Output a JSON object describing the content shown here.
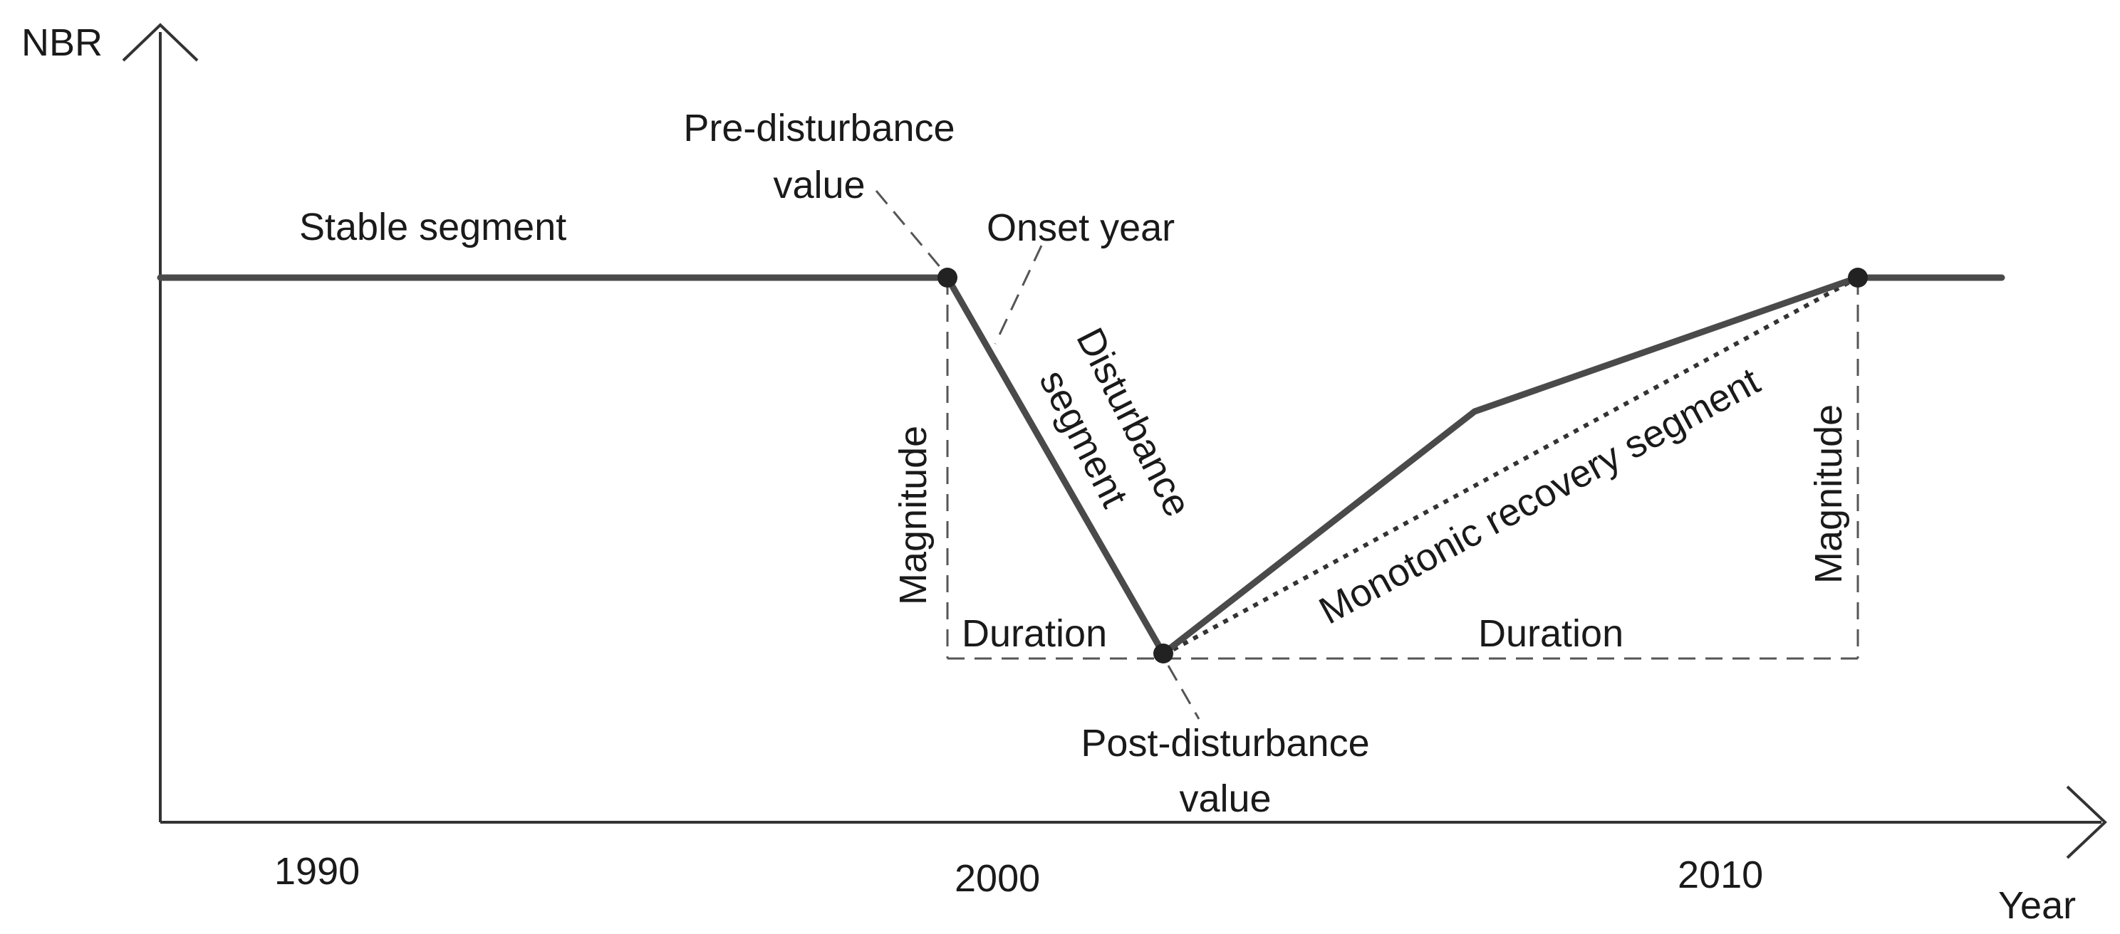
{
  "axes": {
    "y_label": "NBR",
    "x_label": "Year",
    "x_ticks": [
      "1990",
      "2000",
      "2010"
    ]
  },
  "labels": {
    "stable_segment": "Stable segment",
    "pre_disturbance_line1": "Pre-disturbance",
    "pre_disturbance_line2": "value",
    "onset_year": "Onset year",
    "disturbance_line1": "Disturbance",
    "disturbance_line2": "segment",
    "magnitude_left": "Magnitude",
    "magnitude_right": "Magnitude",
    "duration_left": "Duration",
    "duration_right": "Duration",
    "monotonic_recovery": "Monotonic recovery segment",
    "post_disturbance_line1": "Post-disturbance",
    "post_disturbance_line2": "value"
  },
  "colors": {
    "trajectory": "#4a4a4a",
    "axis": "#333333",
    "dashed": "#555555"
  }
}
